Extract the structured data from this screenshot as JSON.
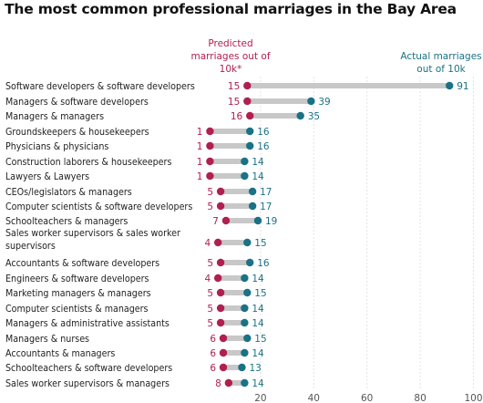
{
  "title": "The most common professional marriages in the Bay Area",
  "legend": {
    "predicted": [
      "Predicted",
      "marriages out of",
      "10k*"
    ],
    "actual": [
      "Actual marriages",
      "out of 10k"
    ]
  },
  "colors": {
    "predicted": "#b0204f",
    "actual": "#1a7285",
    "bar": "#c8c8c8"
  },
  "chart_data": {
    "type": "dumbbell",
    "title": "The most common professional marriages in the Bay Area",
    "xlim": [
      0,
      100
    ],
    "xticks": [
      20,
      40,
      60,
      80,
      100
    ],
    "series": [
      {
        "name": "Predicted marriages out of 10k*",
        "values": [
          15,
          15,
          16,
          1,
          1,
          1,
          1,
          5,
          5,
          7,
          4,
          5,
          4,
          5,
          5,
          5,
          6,
          6,
          6,
          8
        ]
      },
      {
        "name": "Actual marriages out of 10k",
        "values": [
          91,
          39,
          35,
          16,
          16,
          14,
          14,
          17,
          17,
          19,
          15,
          16,
          14,
          15,
          14,
          14,
          15,
          14,
          13,
          14
        ]
      }
    ],
    "categories": [
      [
        "Software developers & software developers"
      ],
      [
        "Managers & software developers"
      ],
      [
        "Managers & managers"
      ],
      [
        "Groundskeepers & housekeepers"
      ],
      [
        "Physicians & physicians"
      ],
      [
        "Construction laborers & housekeepers"
      ],
      [
        "Lawyers & Lawyers"
      ],
      [
        "CEOs/legislators & managers"
      ],
      [
        "Computer scientists & software developers"
      ],
      [
        "Schoolteachers & managers"
      ],
      [
        "Sales worker supervisors & sales worker",
        "supervisors"
      ],
      [
        "Accountants & software developers"
      ],
      [
        "Engineers & software developers"
      ],
      [
        "Marketing managers & managers"
      ],
      [
        "Computer scientists & managers"
      ],
      [
        "Managers & administrative assistants"
      ],
      [
        "Managers & nurses"
      ],
      [
        "Accountants & managers"
      ],
      [
        "Schoolteachers & software developers"
      ],
      [
        "Sales worker supervisors & managers"
      ]
    ]
  }
}
